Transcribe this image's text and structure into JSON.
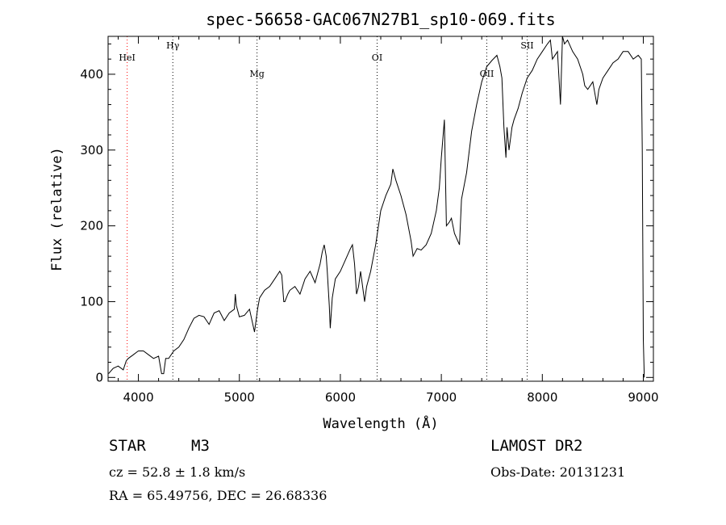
{
  "chart_data": {
    "type": "line",
    "title": "spec-56658-GAC067N27B1_sp10-069.fits",
    "xlabel": "Wavelength (Å)",
    "ylabel": "Flux (relative)",
    "xlim": [
      3700,
      9100
    ],
    "ylim": [
      -5,
      450
    ],
    "x_ticks": [
      4000,
      5000,
      6000,
      7000,
      8000,
      9000
    ],
    "y_ticks": [
      0,
      100,
      200,
      300,
      400
    ],
    "grid": false,
    "lines": [
      {
        "label": "HeI",
        "wavelength": 3889,
        "color": "#ff0000"
      },
      {
        "label": "Hγ",
        "wavelength": 4341,
        "color": "#000000"
      },
      {
        "label": "Mg",
        "wavelength": 5175,
        "color": "#000000"
      },
      {
        "label": "OI",
        "wavelength": 6364,
        "color": "#000000"
      },
      {
        "label": "OII",
        "wavelength": 7450,
        "color": "#000000"
      },
      {
        "label": "SII",
        "wavelength": 7850,
        "color": "#000000"
      }
    ],
    "series": [
      {
        "x": [
          3705,
          3750,
          3800,
          3850,
          3880,
          3900,
          3950,
          3990,
          4000,
          4050,
          4100,
          4150,
          4200,
          4230,
          4250,
          4270,
          4300,
          4350,
          4400,
          4450,
          4500,
          4550,
          4600,
          4650,
          4700,
          4750,
          4800,
          4850,
          4900,
          4950,
          4960,
          4970,
          5000,
          5050,
          5100,
          5150,
          5180,
          5200,
          5250,
          5300,
          5350,
          5400,
          5420,
          5440,
          5450,
          5480,
          5500,
          5550,
          5600,
          5650,
          5700,
          5750,
          5800,
          5820,
          5840,
          5860,
          5870,
          5890,
          5900,
          5920,
          5950,
          6000,
          6050,
          6100,
          6120,
          6140,
          6160,
          6180,
          6200,
          6240,
          6260,
          6280,
          6300,
          6350,
          6400,
          6450,
          6500,
          6520,
          6550,
          6600,
          6650,
          6700,
          6720,
          6760,
          6800,
          6850,
          6900,
          6950,
          6980,
          7000,
          7030,
          7050,
          7080,
          7100,
          7130,
          7180,
          7200,
          7250,
          7300,
          7350,
          7400,
          7450,
          7500,
          7550,
          7580,
          7600,
          7620,
          7640,
          7650,
          7670,
          7700,
          7720,
          7760,
          7800,
          7850,
          7900,
          7950,
          8000,
          8050,
          8080,
          8100,
          8150,
          8180,
          8200,
          8220,
          8250,
          8300,
          8350,
          8400,
          8420,
          8450,
          8500,
          8540,
          8560,
          8600,
          8650,
          8700,
          8750,
          8800,
          8850,
          8900,
          8950,
          8980,
          8990,
          9000,
          9010
        ],
        "y": [
          5,
          12,
          15,
          10,
          22,
          25,
          30,
          34,
          35,
          35,
          30,
          25,
          28,
          5,
          5,
          25,
          25,
          35,
          40,
          50,
          65,
          78,
          82,
          80,
          70,
          85,
          88,
          75,
          85,
          90,
          110,
          95,
          80,
          82,
          90,
          60,
          90,
          105,
          115,
          120,
          130,
          140,
          135,
          100,
          100,
          110,
          115,
          120,
          110,
          130,
          140,
          125,
          150,
          165,
          175,
          160,
          140,
          95,
          65,
          105,
          130,
          140,
          155,
          170,
          175,
          150,
          110,
          120,
          140,
          100,
          120,
          130,
          140,
          175,
          220,
          240,
          255,
          275,
          260,
          240,
          215,
          180,
          160,
          170,
          168,
          175,
          190,
          220,
          250,
          290,
          340,
          200,
          205,
          210,
          190,
          175,
          235,
          270,
          325,
          360,
          390,
          410,
          418,
          425,
          410,
          395,
          330,
          290,
          330,
          300,
          330,
          340,
          355,
          375,
          395,
          405,
          420,
          430,
          440,
          445,
          420,
          430,
          360,
          450,
          440,
          445,
          430,
          420,
          400,
          385,
          380,
          390,
          360,
          380,
          395,
          405,
          415,
          420,
          430,
          430,
          420,
          425,
          420,
          300,
          50,
          0
        ]
      }
    ]
  },
  "info": {
    "object_class": "STAR",
    "subclass": "M3",
    "survey": "LAMOST DR2",
    "cz": "cz = 52.8 ± 1.8 km/s",
    "obs_date": "Obs-Date: 20131231",
    "coords": "RA =  65.49756, DEC =  26.68336"
  }
}
